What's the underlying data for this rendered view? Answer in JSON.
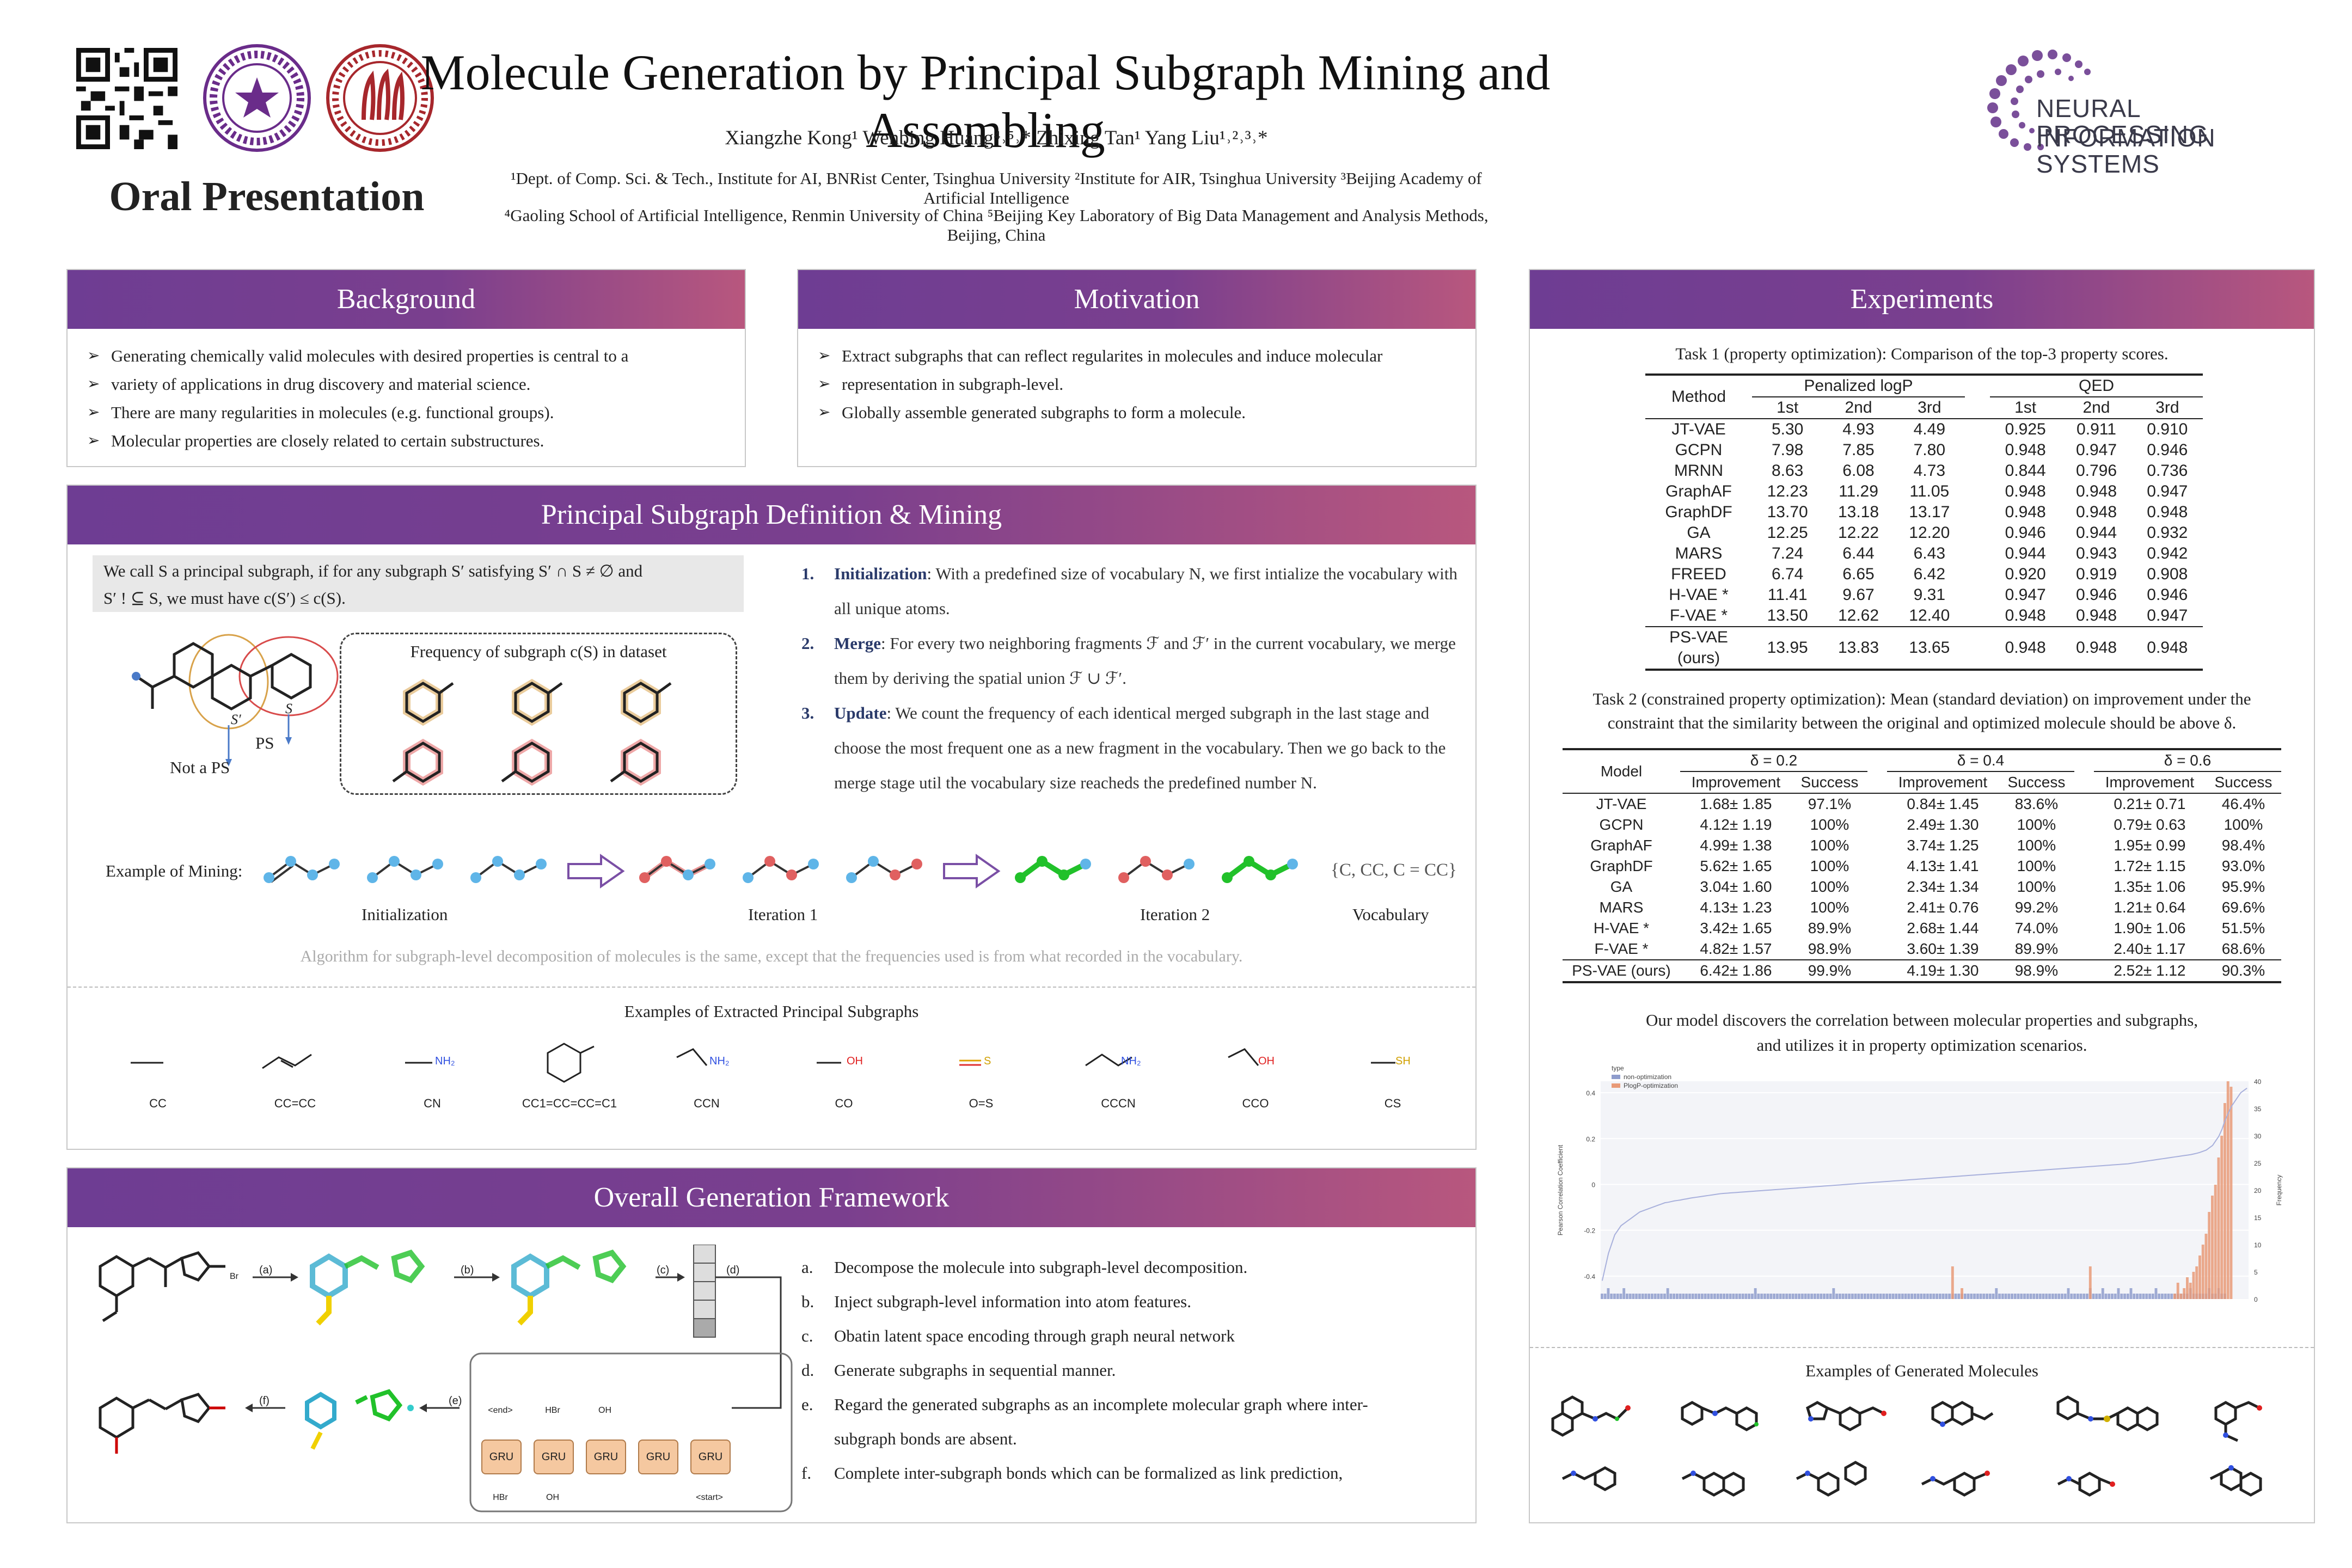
{
  "header": {
    "title": "Molecule Generation by Principal Subgraph Mining and Assembling",
    "authors": "Xiangzhe Kong¹ Wenbing Huang⁴˒⁵˒* Zhixing Tan¹ Yang Liu¹˒²˒³˒*",
    "affil1": "¹Dept. of Comp. Sci. & Tech., Institute for AI, BNRist Center, Tsinghua University ²Institute for AIR, Tsinghua University ³Beijing Academy of Artificial Intelligence",
    "affil2": "⁴Gaoling School of Artificial Intelligence, Renmin University of China ⁵Beijing Key Laboratory of Big Data Management and Analysis Methods, Beijing, China",
    "oral": "Oral Presentation",
    "neurips_line1": "NEURAL INFORMATION",
    "neurips_line2": "PROCESSING SYSTEMS",
    "seal1_text": "TSINGHUA · 1911",
    "seal2_text": "RENMIN UNIVERSITY OF CHINA · 1937"
  },
  "background": {
    "title": "Background",
    "items": [
      "Generating chemically valid molecules with desired properties is central to a",
      "variety of applications in drug discovery and material science.",
      "There are many regularities in molecules (e.g. functional groups).",
      "Molecular properties are closely related to certain substructures."
    ]
  },
  "motivation": {
    "title": "Motivation",
    "items": [
      "Extract subgraphs that can reflect regularites in molecules and induce molecular",
      "representation in subgraph-level.",
      "Globally assemble generated subgraphs to form a molecule."
    ]
  },
  "principal": {
    "title": "Principal Subgraph Definition & Mining",
    "definition_line1": "We call S a principal subgraph, if for any subgraph S′ satisfying S′ ∩ S ≠ ∅ and",
    "definition_line2": "S′ ! ⊆ S, we must have c(S′) ≤ c(S).",
    "freq_label": "Frequency of subgraph c(S) in dataset",
    "not_ps": "Not a PS",
    "ps": "PS",
    "s_prime": "S′",
    "s": "S",
    "steps": [
      {
        "num": "1.",
        "name": "Initialization",
        "text": ": With a predefined size of vocabulary N, we first intialize the vocabulary with all unique atoms."
      },
      {
        "num": "2.",
        "name": "Merge",
        "text": ": For every two neighboring fragments ℱ and ℱ′ in the current vocabulary, we merge them by deriving the spatial union ℱ ∪ ℱ′."
      },
      {
        "num": "3.",
        "name": "Update",
        "text": ": We count the frequency of each identical merged subgraph in the last stage and choose the most frequent one as a new fragment in the vocabulary. Then we go back to the merge stage util the vocabulary size reacheds the predefined number N."
      }
    ],
    "example_label": "Example of Mining:",
    "vocab_set": "{C, CC, C = CC}",
    "stage_labels": [
      "Initialization",
      "Iteration 1",
      "Iteration 2",
      "Vocabulary"
    ],
    "note": "Algorithm for subgraph-level decomposition of molecules is the same, except that the frequencies used is from what recorded in the vocabulary.",
    "extracted_title": "Examples of Extracted Principal Subgraphs",
    "extracted": [
      {
        "smiles": "CC",
        "atom": ""
      },
      {
        "smiles": "CC=CC",
        "atom": ""
      },
      {
        "smiles": "CN",
        "atom": "NH₂"
      },
      {
        "smiles": "CC1=CC=CC=C1",
        "atom": ""
      },
      {
        "smiles": "CCN",
        "atom": "NH₂"
      },
      {
        "smiles": "CO",
        "atom": "OH"
      },
      {
        "smiles": "O=S",
        "atom": "S"
      },
      {
        "smiles": "CCCN",
        "atom": "NH₂"
      },
      {
        "smiles": "CCO",
        "atom": "OH"
      },
      {
        "smiles": "CS",
        "atom": "SH"
      }
    ]
  },
  "framework": {
    "title": "Overall Generation Framework",
    "steps": [
      {
        "l": "a.",
        "t": "Decompose the molecule into subgraph-level decomposition."
      },
      {
        "l": "b.",
        "t": "Inject subgraph-level information into atom features."
      },
      {
        "l": "c.",
        "t": "Obatin latent space encoding through graph neural network"
      },
      {
        "l": "d.",
        "t": "Generate subgraphs in sequential manner."
      },
      {
        "l": "e.",
        "t": "Regard the generated subgraphs as an incomplete molecular graph where inter-"
      },
      {
        "l": "",
        "t": "subgraph bonds are absent."
      },
      {
        "l": "f.",
        "t": "Complete inter-subgraph bonds which can be formalized as link prediction,"
      }
    ],
    "arrow_labels": [
      "(a)",
      "(b)",
      "(c)",
      "(d)",
      "(e)",
      "(f)"
    ],
    "gru": "GRU",
    "tokens_top": [
      "<end>",
      "HBr",
      "OH",
      "",
      ""
    ],
    "tokens_bottom": [
      "HBr",
      "OH",
      "",
      "",
      "<start>"
    ],
    "br_label": "Br"
  },
  "experiments": {
    "title": "Experiments",
    "task1_caption": "Task 1 (property optimization): Comparison of the top-3 property scores.",
    "task1_headers": {
      "method": "Method",
      "plogp": "Penalized logP",
      "qed": "QED",
      "ranks": [
        "1st",
        "2nd",
        "3rd"
      ]
    },
    "task1_rows": [
      {
        "m": "JT-VAE",
        "v": [
          "5.30",
          "4.93",
          "4.49",
          "0.925",
          "0.911",
          "0.910"
        ],
        "b": []
      },
      {
        "m": "GCPN",
        "v": [
          "7.98",
          "7.85",
          "7.80",
          "0.948",
          "0.947",
          "0.946"
        ],
        "b": [
          3
        ]
      },
      {
        "m": "MRNN",
        "v": [
          "8.63",
          "6.08",
          "4.73",
          "0.844",
          "0.796",
          "0.736"
        ],
        "b": []
      },
      {
        "m": "GraphAF",
        "v": [
          "12.23",
          "11.29",
          "11.05",
          "0.948",
          "0.948",
          "0.947"
        ],
        "b": [
          3,
          4
        ]
      },
      {
        "m": "GraphDF",
        "v": [
          "13.70",
          "13.18",
          "13.17",
          "0.948",
          "0.948",
          "0.948"
        ],
        "b": [
          3,
          4,
          5
        ]
      },
      {
        "m": "GA",
        "v": [
          "12.25",
          "12.22",
          "12.20",
          "0.946",
          "0.944",
          "0.932"
        ],
        "b": []
      },
      {
        "m": "MARS",
        "v": [
          "7.24",
          "6.44",
          "6.43",
          "0.944",
          "0.943",
          "0.942"
        ],
        "b": []
      },
      {
        "m": "FREED",
        "v": [
          "6.74",
          "6.65",
          "6.42",
          "0.920",
          "0.919",
          "0.908"
        ],
        "b": []
      },
      {
        "m": "H-VAE *",
        "v": [
          "11.41",
          "9.67",
          "9.31",
          "0.947",
          "0.946",
          "0.946"
        ],
        "b": []
      },
      {
        "m": "F-VAE *",
        "v": [
          "13.50",
          "12.62",
          "12.40",
          "0.948",
          "0.948",
          "0.947"
        ],
        "b": [
          3,
          4
        ]
      },
      {
        "m": "PS-VAE (ours)",
        "v": [
          "13.95",
          "13.83",
          "13.65",
          "0.948",
          "0.948",
          "0.948"
        ],
        "b": [
          0,
          1,
          2,
          3,
          4,
          5
        ]
      }
    ],
    "task2_caption1": "Task 2 (constrained property optimization): Mean (standard deviation) on improvement under the",
    "task2_caption2": "constraint that the similarity between the original and optimized molecule should be above δ.",
    "task2_headers": {
      "model": "Model",
      "deltas": [
        "δ = 0.2",
        "δ = 0.4",
        "δ = 0.6"
      ],
      "imp": "Improvement",
      "succ": "Success"
    },
    "task2_rows": [
      {
        "m": "JT-VAE",
        "v": [
          "1.68± 1.85",
          "97.1%",
          "0.84± 1.45",
          "83.6%",
          "0.21± 0.71",
          "46.4%"
        ],
        "b": []
      },
      {
        "m": "GCPN",
        "v": [
          "4.12± 1.19",
          "100%",
          "2.49± 1.30",
          "100%",
          "0.79± 0.63",
          "100%"
        ],
        "b": []
      },
      {
        "m": "GraphAF",
        "v": [
          "4.99± 1.38",
          "100%",
          "3.74± 1.25",
          "100%",
          "1.95± 0.99",
          "98.4%"
        ],
        "b": []
      },
      {
        "m": "GraphDF",
        "v": [
          "5.62± 1.65",
          "100%",
          "4.13± 1.41",
          "100%",
          "1.72± 1.15",
          "93.0%"
        ],
        "b": []
      },
      {
        "m": "GA",
        "v": [
          "3.04± 1.60",
          "100%",
          "2.34± 1.34",
          "100%",
          "1.35± 1.06",
          "95.9%"
        ],
        "b": []
      },
      {
        "m": "MARS",
        "v": [
          "4.13± 1.23",
          "100%",
          "2.41± 0.76",
          "99.2%",
          "1.21± 0.64",
          "69.6%"
        ],
        "b": []
      },
      {
        "m": "H-VAE *",
        "v": [
          "3.42± 1.65",
          "89.9%",
          "2.68± 1.44",
          "74.0%",
          "1.90± 1.06",
          "51.5%"
        ],
        "b": []
      },
      {
        "m": "F-VAE *",
        "v": [
          "4.82± 1.57",
          "98.9%",
          "3.60± 1.39",
          "89.9%",
          "2.40± 1.17",
          "68.6%"
        ],
        "b": []
      },
      {
        "m": "PS-VAE (ours)",
        "v": [
          "6.42± 1.86",
          "99.9%",
          "4.19± 1.30",
          "98.9%",
          "2.52± 1.12",
          "90.3%"
        ],
        "b": [
          0,
          2,
          4
        ]
      }
    ],
    "corr_text1": "Our model discovers the correlation between molecular properties and subgraphs,",
    "corr_text2": "and utilizes it in property optimization scenarios.",
    "generated_title": "Examples of Generated Molecules"
  },
  "chart_data": {
    "type": "bar",
    "title": "",
    "xlabel": "",
    "ylabel": "Pearson Correlation Coefficient",
    "y2label": "Frequency",
    "legend_title": "type",
    "legend": [
      "non-optimization",
      "PlogP-optimization"
    ],
    "ylim": [
      -0.5,
      0.45
    ],
    "y_ticks": [
      "0.4",
      "0.2",
      "0",
      "-0.2",
      "-0.4"
    ],
    "y2lim": [
      0,
      40
    ],
    "y2_ticks": [
      "40",
      "35",
      "30",
      "25",
      "20",
      "15",
      "10",
      "5",
      "0"
    ],
    "colors": {
      "non": "#8e9ccc",
      "plogp": "#e89a78",
      "line": "#a8b0dc"
    },
    "series": [
      {
        "name": "non-optimization",
        "values": [
          1,
          1,
          2,
          1,
          1,
          1,
          1,
          2,
          1,
          1,
          1,
          1,
          1,
          1,
          1,
          1,
          1,
          1,
          1,
          1,
          1,
          2,
          1,
          1,
          1,
          1,
          1,
          1,
          1,
          1,
          1,
          1,
          1,
          1,
          1,
          1,
          1,
          1,
          1,
          1,
          1,
          1,
          1,
          1,
          1,
          1,
          1,
          1,
          1,
          2,
          1,
          1,
          1,
          1,
          1,
          1,
          1,
          1,
          1,
          1,
          1,
          1,
          1,
          1,
          1,
          1,
          1,
          1,
          1,
          1,
          1,
          1,
          1,
          1,
          2,
          1,
          1,
          1,
          1,
          1,
          1,
          1,
          1,
          1,
          1,
          1,
          1,
          1,
          1,
          1,
          1,
          1,
          1,
          1,
          1,
          1,
          1,
          1,
          1,
          1,
          1,
          1,
          1,
          1,
          1,
          1,
          1,
          1,
          1,
          1,
          1,
          1,
          1,
          1,
          1,
          1,
          1,
          1,
          1,
          1,
          1,
          1,
          1,
          1,
          1,
          1,
          2,
          1,
          1,
          1,
          1,
          1,
          1,
          1,
          1,
          1,
          1,
          1,
          1,
          1,
          1,
          1,
          1,
          1,
          1,
          1,
          1,
          1,
          1,
          2,
          1,
          1,
          1,
          1,
          1,
          1,
          2,
          1,
          1,
          1,
          2,
          1,
          1,
          1,
          1,
          2,
          1,
          1,
          1,
          2,
          1,
          1,
          1,
          1,
          1,
          1,
          1,
          2,
          1,
          1,
          1,
          1,
          1,
          1,
          1,
          1,
          1,
          1,
          2,
          1,
          1,
          1,
          1,
          1,
          2,
          1,
          1,
          2,
          1,
          1
        ]
      },
      {
        "name": "PlogP-optimization",
        "values": [
          0,
          0,
          0,
          0,
          0,
          0,
          0,
          0,
          0,
          0,
          0,
          0,
          0,
          0,
          0,
          0,
          0,
          0,
          0,
          0,
          0,
          0,
          0,
          0,
          0,
          0,
          0,
          0,
          0,
          0,
          0,
          0,
          0,
          0,
          0,
          0,
          0,
          0,
          0,
          0,
          0,
          0,
          0,
          0,
          0,
          0,
          0,
          0,
          0,
          0,
          0,
          0,
          0,
          0,
          0,
          0,
          0,
          0,
          0,
          0,
          0,
          0,
          0,
          0,
          0,
          0,
          0,
          0,
          0,
          0,
          0,
          0,
          0,
          0,
          0,
          0,
          0,
          0,
          0,
          0,
          0,
          0,
          0,
          0,
          0,
          0,
          0,
          0,
          0,
          0,
          0,
          0,
          0,
          0,
          0,
          0,
          0,
          0,
          0,
          0,
          0,
          0,
          0,
          0,
          0,
          0,
          0,
          0,
          0,
          0,
          0,
          0,
          6,
          0,
          0,
          2,
          0,
          0,
          0,
          0,
          0,
          0,
          0,
          0,
          0,
          0,
          0,
          0,
          0,
          0,
          0,
          0,
          0,
          0,
          0,
          0,
          0,
          0,
          0,
          0,
          0,
          0,
          0,
          0,
          0,
          0,
          0,
          0,
          0,
          0,
          0,
          0,
          0,
          0,
          0,
          0,
          6,
          0,
          0,
          0,
          0,
          0,
          0,
          0,
          0,
          0,
          0,
          0,
          0,
          0,
          0,
          0,
          0,
          0,
          0,
          0,
          0,
          0,
          0,
          0,
          0,
          0,
          0,
          1,
          3,
          1,
          2,
          4,
          3,
          5,
          6,
          8,
          10,
          12,
          16,
          19,
          21,
          26,
          30,
          36,
          40,
          39
        ]
      }
    ],
    "correlation": [
      -0.42,
      -0.36,
      -0.3,
      -0.26,
      -0.22,
      -0.2,
      -0.18,
      -0.17,
      -0.16,
      -0.15,
      -0.14,
      -0.13,
      -0.12,
      -0.115,
      -0.11,
      -0.105,
      -0.1,
      -0.095,
      -0.09,
      -0.085,
      -0.08,
      -0.078,
      -0.075,
      -0.072,
      -0.07,
      -0.068,
      -0.065,
      -0.063,
      -0.06,
      -0.058,
      -0.056,
      -0.054,
      -0.052,
      -0.05,
      -0.048,
      -0.046,
      -0.044,
      -0.042,
      -0.04,
      -0.039,
      -0.038,
      -0.037,
      -0.036,
      -0.035,
      -0.034,
      -0.033,
      -0.032,
      -0.031,
      -0.03,
      -0.029,
      -0.028,
      -0.027,
      -0.026,
      -0.025,
      -0.024,
      -0.023,
      -0.022,
      -0.021,
      -0.02,
      -0.019,
      -0.018,
      -0.017,
      -0.016,
      -0.015,
      -0.014,
      -0.013,
      -0.012,
      -0.011,
      -0.01,
      -0.009,
      -0.008,
      -0.007,
      -0.006,
      -0.005,
      -0.004,
      -0.003,
      -0.002,
      -0.001,
      0,
      0.001,
      0.002,
      0.003,
      0.004,
      0.005,
      0.006,
      0.007,
      0.008,
      0.009,
      0.01,
      0.011,
      0.012,
      0.013,
      0.014,
      0.015,
      0.016,
      0.017,
      0.018,
      0.019,
      0.02,
      0.021,
      0.022,
      0.023,
      0.024,
      0.025,
      0.026,
      0.027,
      0.028,
      0.029,
      0.03,
      0.031,
      0.032,
      0.033,
      0.034,
      0.035,
      0.036,
      0.037,
      0.038,
      0.039,
      0.04,
      0.041,
      0.042,
      0.043,
      0.044,
      0.045,
      0.046,
      0.047,
      0.048,
      0.049,
      0.05,
      0.051,
      0.052,
      0.053,
      0.054,
      0.055,
      0.056,
      0.057,
      0.058,
      0.059,
      0.06,
      0.061,
      0.062,
      0.063,
      0.064,
      0.065,
      0.066,
      0.067,
      0.068,
      0.069,
      0.07,
      0.071,
      0.072,
      0.073,
      0.074,
      0.075,
      0.076,
      0.077,
      0.078,
      0.079,
      0.08,
      0.081,
      0.082,
      0.083,
      0.084,
      0.085,
      0.086,
      0.087,
      0.088,
      0.089,
      0.09,
      0.092,
      0.094,
      0.096,
      0.098,
      0.1,
      0.102,
      0.104,
      0.106,
      0.108,
      0.11,
      0.112,
      0.114,
      0.116,
      0.118,
      0.12,
      0.122,
      0.124,
      0.126,
      0.128,
      0.13,
      0.133,
      0.136,
      0.14,
      0.145,
      0.15,
      0.16,
      0.17,
      0.19,
      0.21,
      0.24,
      0.28,
      0.31,
      0.34,
      0.36,
      0.38,
      0.4,
      0.41,
      0.42
    ]
  }
}
